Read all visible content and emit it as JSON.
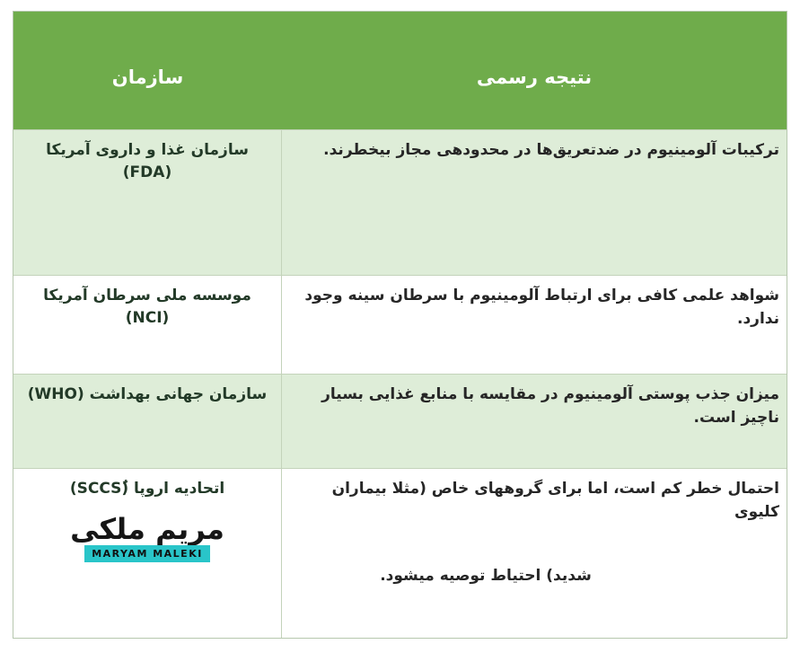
{
  "table": {
    "header": {
      "org_label": "سازمان",
      "result_label": "نتیجه رسمی"
    },
    "rows": [
      {
        "org": "سازمان غذا و داروی آمریکا (FDA)",
        "result": "ترکیبات آلومینیوم در ضدتعریق‌ها در محدودهی مجاز بیخطرند."
      },
      {
        "org": "موسسه ملی سرطان آمریکا (NCI)",
        "result": "شواهد علمی کافی برای ارتباط آلومینیوم با سرطان سینه وجود ندارد."
      },
      {
        "org": "سازمان جهانی بهداشت (WHO)",
        "result": "میزان جذب پوستی آلومینیوم در مقایسه با منابع غذایی بسیار ناچیز است."
      },
      {
        "org": "اتحادیه اروپا (ُSCCS)",
        "result_line1": "احتمال خطر کم است، اما برای گروههای خاص (مثلا بیماران کلیوی",
        "result_line2": "شدید) احتیاط توصیه میشود."
      }
    ],
    "colors": {
      "header_bg": "#6FAC4B",
      "header_text": "#FFFFFF",
      "row_green_bg": "#DEEDD8",
      "row_white_bg": "#FFFFFF",
      "org_text": "#233A28",
      "result_text": "#262626",
      "border": "#C3D3BA"
    }
  },
  "watermark": {
    "calligraphy": "مریم ملکی",
    "name": "MARYAM MALEKI",
    "bar_color": "#29C5C9"
  }
}
